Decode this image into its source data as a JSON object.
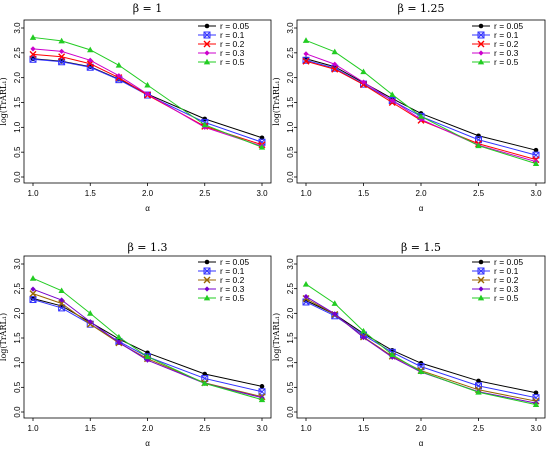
{
  "chart_data": [
    {
      "type": "line",
      "title": "β = 1",
      "xlabel": "α",
      "ylabel": "log(TrARL₁)",
      "x": [
        1.0,
        1.25,
        1.5,
        1.75,
        2.0,
        2.5,
        3.0
      ],
      "xticks": [
        "1.0",
        "1.5",
        "2.0",
        "2.5",
        "3.0"
      ],
      "yticks": [
        "0.0",
        "0.5",
        "1.0",
        "1.5",
        "2.0",
        "2.5",
        "3.0"
      ],
      "xlim": [
        1.0,
        3.0
      ],
      "ylim": [
        0.0,
        3.0
      ],
      "legend_position": "top-right",
      "series": [
        {
          "name": "r = 0.05",
          "color": "#000000",
          "marker": "dot",
          "values": [
            2.38,
            2.33,
            2.22,
            1.97,
            1.67,
            1.17,
            0.79
          ]
        },
        {
          "name": "r = 0.1",
          "color": "#3333ff",
          "marker": "square-x",
          "values": [
            2.37,
            2.32,
            2.21,
            1.96,
            1.65,
            1.1,
            0.7
          ]
        },
        {
          "name": "r = 0.2",
          "color": "#ff0000",
          "marker": "x",
          "values": [
            2.47,
            2.42,
            2.28,
            2.0,
            1.65,
            1.02,
            0.65
          ]
        },
        {
          "name": "r = 0.3",
          "color": "#cc00cc",
          "marker": "diamond",
          "values": [
            2.58,
            2.53,
            2.35,
            2.04,
            1.67,
            1.0,
            0.62
          ]
        },
        {
          "name": "r = 0.5",
          "color": "#22cc22",
          "marker": "triangle",
          "values": [
            2.81,
            2.74,
            2.56,
            2.25,
            1.85,
            1.05,
            0.6
          ]
        }
      ]
    },
    {
      "type": "line",
      "title": "β = 1.25",
      "xlabel": "α",
      "ylabel": "log(TrARL₁)",
      "x": [
        1.0,
        1.25,
        1.5,
        1.75,
        2.0,
        2.5,
        3.0
      ],
      "xticks": [
        "1.0",
        "1.5",
        "2.0",
        "2.5",
        "3.0"
      ],
      "yticks": [
        "0.0",
        "0.5",
        "1.0",
        "1.5",
        "2.0",
        "2.5",
        "3.0"
      ],
      "xlim": [
        1.0,
        3.0
      ],
      "ylim": [
        0.0,
        3.0
      ],
      "legend_position": "top-right",
      "series": [
        {
          "name": "r = 0.05",
          "color": "#000000",
          "marker": "dot",
          "values": [
            2.38,
            2.22,
            1.9,
            1.58,
            1.28,
            0.83,
            0.54
          ]
        },
        {
          "name": "r = 0.1",
          "color": "#3333ff",
          "marker": "square-x",
          "values": [
            2.35,
            2.19,
            1.87,
            1.54,
            1.22,
            0.75,
            0.44
          ]
        },
        {
          "name": "r = 0.2",
          "color": "#ff0000",
          "marker": "x",
          "values": [
            2.33,
            2.17,
            1.86,
            1.5,
            1.14,
            0.67,
            0.35
          ]
        },
        {
          "name": "r = 0.3",
          "color": "#cc00cc",
          "marker": "diamond",
          "values": [
            2.48,
            2.27,
            1.91,
            1.54,
            1.16,
            0.64,
            0.31
          ]
        },
        {
          "name": "r = 0.5",
          "color": "#22cc22",
          "marker": "triangle",
          "values": [
            2.75,
            2.52,
            2.12,
            1.66,
            1.22,
            0.63,
            0.27
          ]
        }
      ]
    },
    {
      "type": "line",
      "title": "β = 1.3",
      "xlabel": "α",
      "ylabel": "log(TrARL₁)",
      "x": [
        1.0,
        1.25,
        1.5,
        1.75,
        2.0,
        2.5,
        3.0
      ],
      "xticks": [
        "1.0",
        "1.5",
        "2.0",
        "2.5",
        "3.0"
      ],
      "yticks": [
        "0.0",
        "0.5",
        "1.0",
        "1.5",
        "2.0",
        "2.5",
        "3.0"
      ],
      "xlim": [
        1.0,
        3.0
      ],
      "ylim": [
        0.0,
        3.0
      ],
      "legend_position": "top-right",
      "series": [
        {
          "name": "r = 0.05",
          "color": "#000000",
          "marker": "dot",
          "values": [
            2.3,
            2.15,
            1.82,
            1.48,
            1.2,
            0.77,
            0.52
          ]
        },
        {
          "name": "r = 0.1",
          "color": "#3333ff",
          "marker": "square-x",
          "values": [
            2.28,
            2.11,
            1.78,
            1.43,
            1.12,
            0.68,
            0.41
          ]
        },
        {
          "name": "r = 0.2",
          "color": "#996600",
          "marker": "x",
          "values": [
            2.4,
            2.2,
            1.78,
            1.4,
            1.08,
            0.59,
            0.31
          ]
        },
        {
          "name": "r = 0.3",
          "color": "#7700cc",
          "marker": "diamond",
          "values": [
            2.49,
            2.27,
            1.83,
            1.41,
            1.05,
            0.58,
            0.29
          ]
        },
        {
          "name": "r = 0.5",
          "color": "#22cc22",
          "marker": "triangle",
          "values": [
            2.71,
            2.46,
            2.0,
            1.52,
            1.12,
            0.58,
            0.25
          ]
        }
      ]
    },
    {
      "type": "line",
      "title": "β = 1.5",
      "xlabel": "α",
      "ylabel": "log(TrARL₁)",
      "x": [
        1.0,
        1.25,
        1.5,
        1.75,
        2.0,
        2.5,
        3.0
      ],
      "xticks": [
        "1.0",
        "1.5",
        "2.0",
        "2.5",
        "3.0"
      ],
      "yticks": [
        "0.0",
        "0.5",
        "1.0",
        "1.5",
        "2.0",
        "2.5",
        "3.0"
      ],
      "xlim": [
        1.0,
        3.0
      ],
      "ylim": [
        0.0,
        3.0
      ],
      "legend_position": "top-right",
      "series": [
        {
          "name": "r = 0.05",
          "color": "#000000",
          "marker": "dot",
          "values": [
            2.26,
            1.98,
            1.59,
            1.25,
            0.99,
            0.63,
            0.39
          ]
        },
        {
          "name": "r = 0.1",
          "color": "#3333ff",
          "marker": "square-x",
          "values": [
            2.23,
            1.95,
            1.56,
            1.21,
            0.92,
            0.53,
            0.29
          ]
        },
        {
          "name": "r = 0.2",
          "color": "#996600",
          "marker": "x",
          "values": [
            2.3,
            1.98,
            1.52,
            1.13,
            0.84,
            0.45,
            0.22
          ]
        },
        {
          "name": "r = 0.3",
          "color": "#7700cc",
          "marker": "diamond",
          "values": [
            2.34,
            1.99,
            1.51,
            1.11,
            0.81,
            0.41,
            0.18
          ]
        },
        {
          "name": "r = 0.5",
          "color": "#22cc22",
          "marker": "triangle",
          "values": [
            2.59,
            2.2,
            1.64,
            1.16,
            0.82,
            0.4,
            0.15
          ]
        }
      ]
    }
  ]
}
